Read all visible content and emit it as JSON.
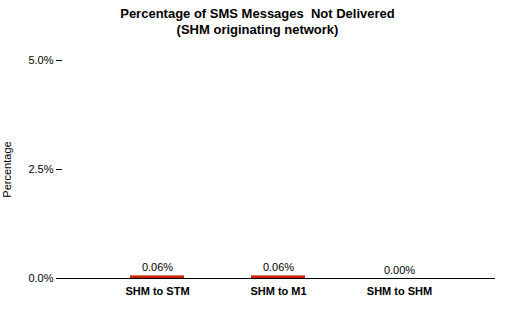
{
  "chart_data": {
    "type": "bar",
    "title": "Percentage of SMS Messages  Not Delivered",
    "subtitle": "(SHM originating network)",
    "ylabel": "Percentage",
    "categories": [
      "SHM to STM",
      "SHM to M1",
      "SHM to SHM"
    ],
    "values": [
      0.06,
      0.06,
      0.0
    ],
    "value_labels": [
      "0.06%",
      "0.06%",
      "0.00%"
    ],
    "data_labels": true,
    "color": "#cc2200",
    "ylim": [
      0,
      5.0
    ],
    "yticks": [
      {
        "value": 0.0,
        "label": "0.0%"
      },
      {
        "value": 2.5,
        "label": "2.5%"
      },
      {
        "value": 5.0,
        "label": "5.0%"
      }
    ],
    "grid": false
  }
}
